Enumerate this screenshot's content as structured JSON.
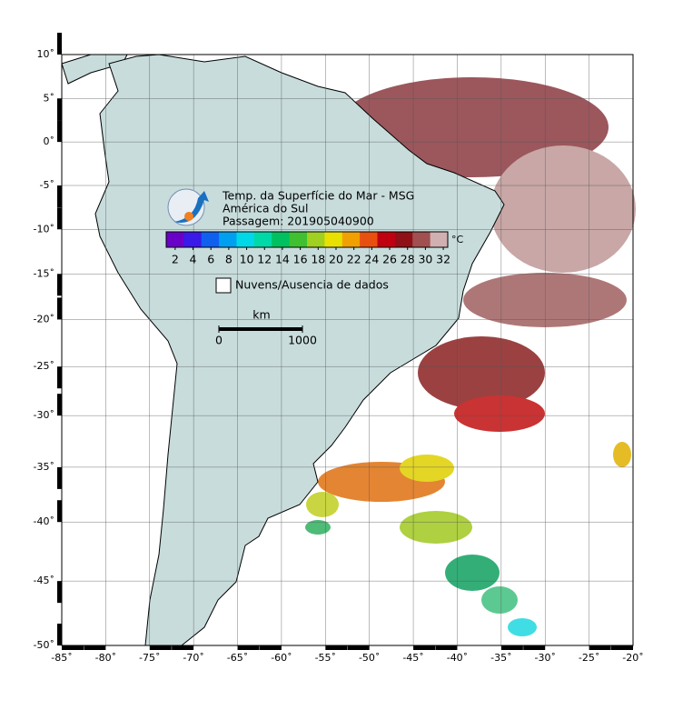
{
  "map": {
    "title_lines": [
      "Temp. da Superfície do Mar - MSG",
      "América do Sul",
      "Passagem: 201905040900"
    ],
    "colorbar": {
      "unit": "°C",
      "clim": [
        1,
        32.5
      ],
      "ticks": [
        2,
        4,
        6,
        8,
        10,
        12,
        14,
        16,
        18,
        20,
        22,
        24,
        26,
        28,
        30,
        32
      ],
      "colors": [
        "#6a00c8",
        "#3a1ae8",
        "#1060f0",
        "#00a0f0",
        "#00d8e8",
        "#00d8a8",
        "#00c060",
        "#40c030",
        "#a0d020",
        "#e8e000",
        "#f0a000",
        "#e85010",
        "#c00010",
        "#901018",
        "#a05050",
        "#d0b0b0"
      ]
    },
    "legend_label": "Nuvens/Ausencia de dados",
    "scale": {
      "unit": "km",
      "ticks": [
        0,
        1000
      ]
    },
    "xlim": [
      -85,
      -20
    ],
    "ylim": [
      -50,
      10
    ],
    "xticks": [
      {
        "value": -85,
        "label": "-85˚"
      },
      {
        "value": -80,
        "label": "-80˚"
      },
      {
        "value": -75,
        "label": "-75˚"
      },
      {
        "value": -70,
        "label": "-70˚"
      },
      {
        "value": -65,
        "label": "-65˚"
      },
      {
        "value": -60,
        "label": "-60˚"
      },
      {
        "value": -55,
        "label": "-55˚"
      },
      {
        "value": -50,
        "label": "-50˚"
      },
      {
        "value": -45,
        "label": "-45˚"
      },
      {
        "value": -40,
        "label": "-40˚"
      },
      {
        "value": -35,
        "label": "-35˚"
      },
      {
        "value": -30,
        "label": "-30˚"
      },
      {
        "value": -25,
        "label": "-25˚"
      },
      {
        "value": -20,
        "label": "-20˚"
      }
    ],
    "yticks": [
      {
        "value": 10,
        "label": "10˚"
      },
      {
        "value": 5,
        "label": "5˚"
      },
      {
        "value": 0,
        "label": "0˚"
      },
      {
        "value": -5,
        "label": "-5˚"
      },
      {
        "value": -10,
        "label": "-10˚"
      },
      {
        "value": -15,
        "label": "-15˚"
      },
      {
        "value": -20,
        "label": "-20˚"
      },
      {
        "value": -25,
        "label": "-25˚"
      },
      {
        "value": -30,
        "label": "-30˚"
      },
      {
        "value": -35,
        "label": "-35˚"
      },
      {
        "value": -40,
        "label": "-40˚"
      },
      {
        "value": -45,
        "label": "-45˚"
      },
      {
        "value": -50,
        "label": "-50˚"
      }
    ]
  }
}
